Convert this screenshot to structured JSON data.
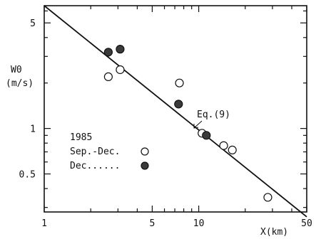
{
  "chart_data": {
    "type": "scatter",
    "xscale": "log",
    "yscale": "log",
    "xlim": [
      1,
      50
    ],
    "ylim": [
      0.28,
      6.5
    ],
    "xticks": [
      1,
      5,
      10,
      50
    ],
    "xtick_labels": [
      "1",
      "5",
      "10",
      "50"
    ],
    "yticks": [
      0.5,
      1,
      5
    ],
    "ytick_labels": [
      "0.5",
      "1",
      "5"
    ],
    "xlabel": "X(km)",
    "ylabel_line1": "W0",
    "ylabel_line2": "(m/s)",
    "legend": {
      "title": "1985",
      "entries": [
        {
          "label": "Sep.-Dec.",
          "marker": "open-circle"
        },
        {
          "label": "Dec......",
          "marker": "filled-circle"
        }
      ]
    },
    "annotation": "Eq.(9)",
    "line": {
      "x": [
        1,
        50
      ],
      "y": [
        6.5,
        0.26
      ]
    },
    "series": [
      {
        "name": "Sep.-Dec.",
        "marker": "open-circle",
        "points": [
          {
            "x": 2.6,
            "y": 2.2
          },
          {
            "x": 3.1,
            "y": 2.45
          },
          {
            "x": 7.5,
            "y": 2.0
          },
          {
            "x": 10.5,
            "y": 0.93
          },
          {
            "x": 14.5,
            "y": 0.77
          },
          {
            "x": 16.5,
            "y": 0.72
          },
          {
            "x": 28.0,
            "y": 0.35
          }
        ]
      },
      {
        "name": "Dec......",
        "marker": "filled-circle",
        "points": [
          {
            "x": 2.6,
            "y": 3.2
          },
          {
            "x": 3.1,
            "y": 3.35
          },
          {
            "x": 7.4,
            "y": 1.45
          },
          {
            "x": 11.2,
            "y": 0.9
          }
        ]
      }
    ]
  }
}
